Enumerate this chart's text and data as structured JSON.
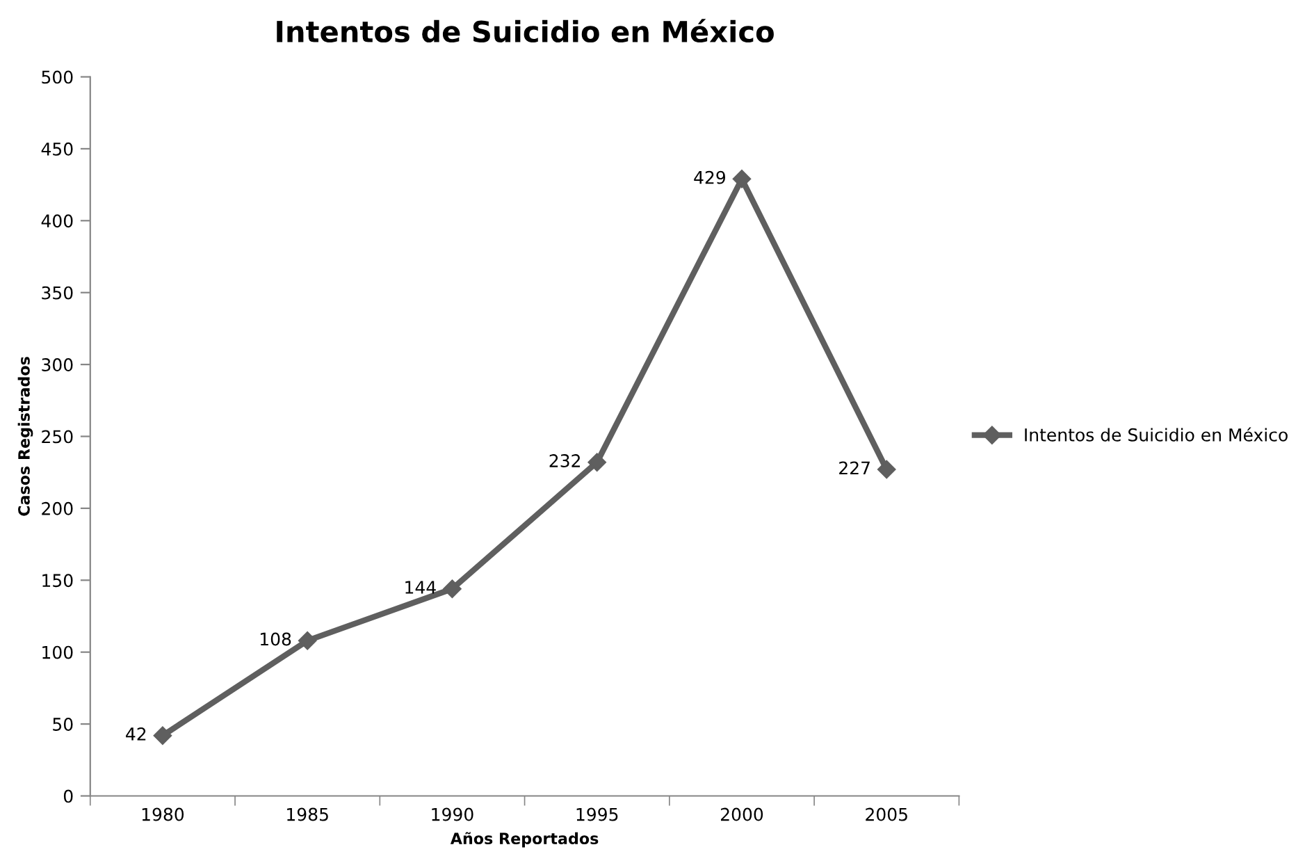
{
  "chart_data": {
    "type": "line",
    "title": "Intentos de Suicidio en México",
    "xlabel": "Años Reportados",
    "ylabel": "Casos Registrados",
    "categories": [
      "1980",
      "1985",
      "1990",
      "1995",
      "2000",
      "2005"
    ],
    "series": [
      {
        "name": "Intentos de Suicidio en México",
        "color": "#5f5f5f",
        "values": [
          42,
          108,
          144,
          232,
          429,
          227
        ]
      }
    ],
    "ylim": [
      0,
      500
    ],
    "yticks": [
      0,
      50,
      100,
      150,
      200,
      250,
      300,
      350,
      400,
      450,
      500
    ],
    "marker": "diamond",
    "line_style": "solid",
    "grid": false,
    "legend": "right",
    "data_labels": true
  }
}
